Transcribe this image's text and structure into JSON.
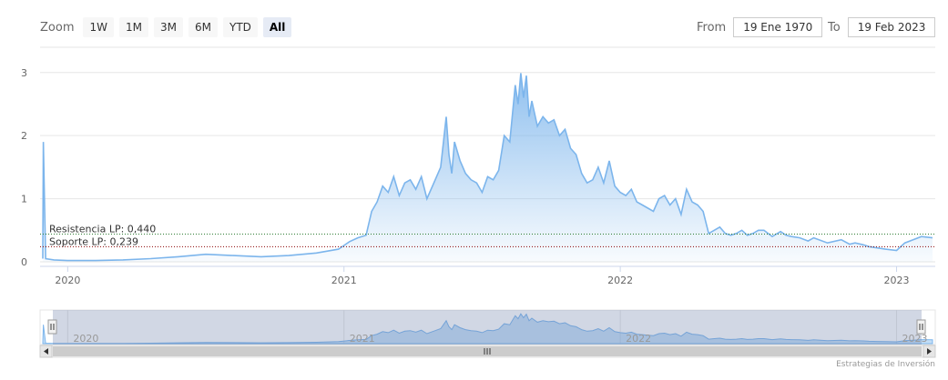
{
  "toolbar": {
    "zoom_label": "Zoom",
    "buttons": [
      "1W",
      "1M",
      "3M",
      "6M",
      "YTD",
      "All"
    ],
    "active_button": "All",
    "from_label": "From",
    "from_value": "19 Ene 1970",
    "to_label": "To",
    "to_value": "19 Feb 2023"
  },
  "credit": "Estrategias de Inversión",
  "chart_data": {
    "type": "area",
    "title": "",
    "xlabel": "",
    "ylabel": "",
    "x_ticks": [
      "2020",
      "2021",
      "2022",
      "2023"
    ],
    "y_ticks": [
      "0",
      "1",
      "2",
      "3"
    ],
    "ylim": [
      0,
      3.4
    ],
    "grid": true,
    "legend": "none",
    "annotations": [
      {
        "label": "Resistencia LP: 0,440",
        "value": 0.44,
        "color": "#2e7d32"
      },
      {
        "label": "Soporte LP: 0,239",
        "value": 0.239,
        "color": "#8b0000"
      }
    ],
    "series": [
      {
        "x": [
          2019.91,
          2019.912,
          2019.92,
          2019.95,
          2020.0,
          2020.1,
          2020.2,
          2020.3,
          2020.4,
          2020.5,
          2020.6,
          2020.7,
          2020.8,
          2020.9,
          2020.98,
          2021.02,
          2021.05,
          2021.08,
          2021.1,
          2021.12,
          2021.14,
          2021.16,
          2021.18,
          2021.2,
          2021.22,
          2021.24,
          2021.26,
          2021.28,
          2021.3,
          2021.33,
          2021.35,
          2021.37,
          2021.38,
          2021.39,
          2021.4,
          2021.42,
          2021.44,
          2021.46,
          2021.48,
          2021.5,
          2021.52,
          2021.54,
          2021.56,
          2021.58,
          2021.6,
          2021.62,
          2021.63,
          2021.64,
          2021.65,
          2021.66,
          2021.67,
          2021.68,
          2021.7,
          2021.72,
          2021.74,
          2021.76,
          2021.78,
          2021.8,
          2021.82,
          2021.84,
          2021.86,
          2021.88,
          2021.9,
          2021.92,
          2021.94,
          2021.96,
          2021.98,
          2022.0,
          2022.02,
          2022.04,
          2022.06,
          2022.08,
          2022.1,
          2022.12,
          2022.14,
          2022.16,
          2022.18,
          2022.2,
          2022.22,
          2022.24,
          2022.26,
          2022.28,
          2022.3,
          2022.32,
          2022.34,
          2022.36,
          2022.38,
          2022.4,
          2022.42,
          2022.44,
          2022.46,
          2022.48,
          2022.5,
          2022.52,
          2022.55,
          2022.58,
          2022.6,
          2022.62,
          2022.65,
          2022.68,
          2022.7,
          2022.75,
          2022.8,
          2022.83,
          2022.85,
          2022.88,
          2022.9,
          2022.93,
          2022.96,
          2023.0,
          2023.03,
          2023.06,
          2023.09,
          2023.13
        ],
        "values": [
          0.05,
          1.9,
          0.05,
          0.03,
          0.02,
          0.02,
          0.03,
          0.05,
          0.08,
          0.12,
          0.1,
          0.08,
          0.1,
          0.14,
          0.2,
          0.32,
          0.38,
          0.42,
          0.8,
          0.95,
          1.2,
          1.1,
          1.35,
          1.05,
          1.25,
          1.3,
          1.15,
          1.35,
          1.0,
          1.3,
          1.5,
          2.3,
          1.7,
          1.4,
          1.9,
          1.6,
          1.4,
          1.3,
          1.25,
          1.1,
          1.35,
          1.3,
          1.45,
          2.0,
          1.9,
          2.8,
          2.5,
          2.99,
          2.6,
          2.95,
          2.3,
          2.55,
          2.15,
          2.3,
          2.2,
          2.25,
          2.0,
          2.1,
          1.8,
          1.7,
          1.4,
          1.25,
          1.3,
          1.5,
          1.25,
          1.6,
          1.2,
          1.1,
          1.05,
          1.15,
          0.95,
          0.9,
          0.85,
          0.8,
          1.0,
          1.05,
          0.9,
          1.0,
          0.75,
          1.15,
          0.95,
          0.9,
          0.8,
          0.45,
          0.5,
          0.55,
          0.45,
          0.42,
          0.45,
          0.5,
          0.42,
          0.45,
          0.5,
          0.5,
          0.4,
          0.48,
          0.42,
          0.4,
          0.38,
          0.33,
          0.38,
          0.3,
          0.35,
          0.28,
          0.3,
          0.27,
          0.24,
          0.22,
          0.2,
          0.18,
          0.3,
          0.35,
          0.4,
          0.38
        ]
      }
    ]
  }
}
